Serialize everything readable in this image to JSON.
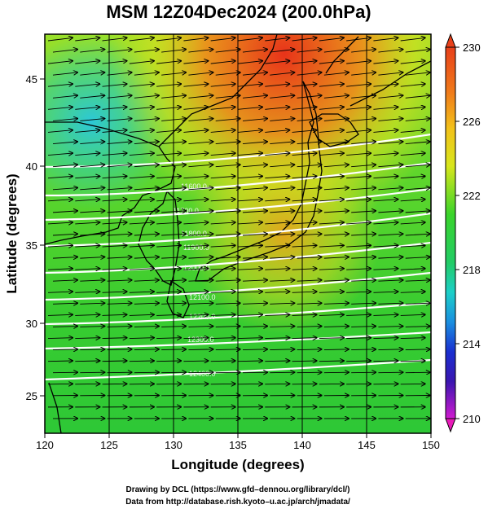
{
  "title": "MSM 12Z04Dec2024 (200.0hPa)",
  "xlabel": "Longitude (degrees)",
  "ylabel": "Latitude  (degrees)",
  "xticks": [
    "120",
    "125",
    "130",
    "135",
    "140",
    "145",
    "150"
  ],
  "yticks": [
    "25",
    "30",
    "35",
    "40",
    "45"
  ],
  "colorbar_ticks": [
    "230",
    "226",
    "222",
    "218",
    "214",
    "210"
  ],
  "contour_labels": [
    "11600.0",
    "11700.0",
    "11800.0",
    "11900.0",
    "12000.0",
    "12100.0",
    "12200.0",
    "12300.0",
    "12400.0"
  ],
  "footer": {
    "line1": "Drawing by DCL (https://www.gfd–dennou.org/library/dcl/)",
    "line2": "Data from http://database.rish.kyoto–u.ac.jp/arch/jmadata/"
  },
  "colors": {
    "warm": "#e8401a",
    "neutral": "#4cd62a",
    "cool": "#2cc8d8",
    "contour": "#ffffff",
    "vectors": "#000000"
  },
  "map": {
    "lon_range": [
      120,
      150
    ],
    "lat_range": [
      22.6,
      48.3
    ],
    "colorbar_range": [
      210,
      230
    ],
    "fields": [
      "temperature (K)",
      "geopotential height (m)",
      "wind vectors"
    ]
  }
}
